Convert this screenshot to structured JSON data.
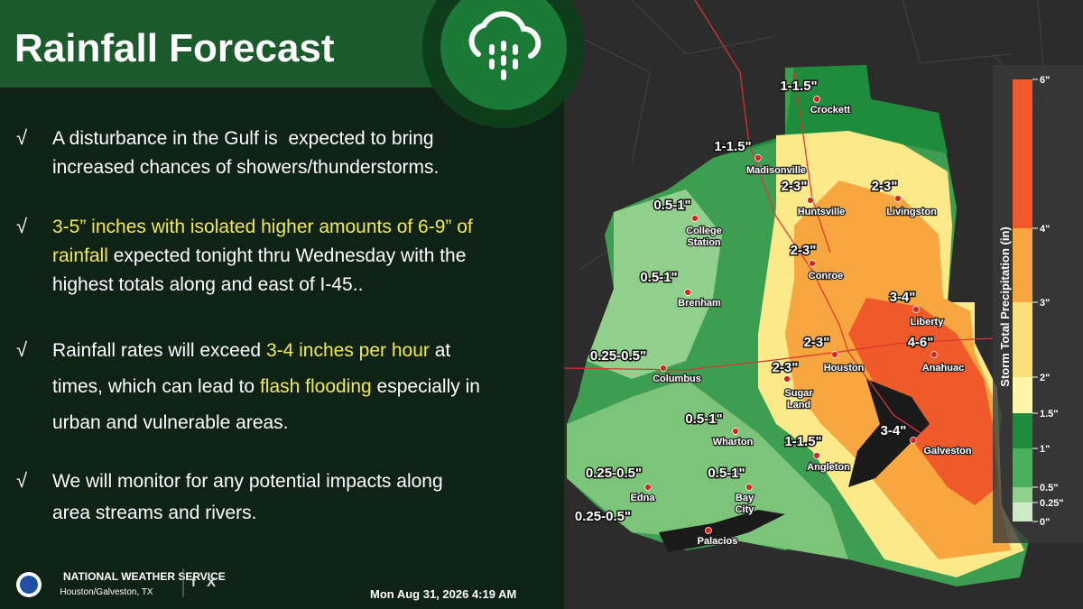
{
  "header": {
    "title": "Rainfall Forecast"
  },
  "bullets": [
    {
      "marker": "√",
      "lines": [
        [
          {
            "text": "A disturbance in the Gulf is  expected to bring",
            "highlight": false
          }
        ],
        [
          {
            "text": "increased chances of showers/thunderstorms.",
            "highlight": false
          }
        ]
      ]
    },
    {
      "marker": "√",
      "lines": [
        [
          {
            "text": "3-5” inches with isolated higher amounts of 6-9” of",
            "highlight": true
          }
        ],
        [
          {
            "text": "rainfall",
            "highlight": true
          },
          {
            "text": " expected tonight thru Wednesday with the",
            "highlight": false
          }
        ],
        [
          {
            "text": "highest totals along and east of I-45..",
            "highlight": false
          }
        ]
      ]
    },
    {
      "marker": "√",
      "lines": [
        [
          {
            "text": "Rainfall rates will exceed ",
            "highlight": false
          },
          {
            "text": "3-4 inches per hour",
            "highlight": true
          },
          {
            "text": " at",
            "highlight": false
          }
        ],
        [
          {
            "text": "times, which can lead to ",
            "highlight": false
          },
          {
            "text": "flash flooding",
            "highlight": true
          },
          {
            "text": " especially in",
            "highlight": false
          }
        ],
        [
          {
            "text": "urban and vulnerable areas.",
            "highlight": false
          }
        ]
      ]
    },
    {
      "marker": "√",
      "lines": [
        [
          {
            "text": "We will monitor for any potential impacts along",
            "highlight": false
          }
        ],
        [
          {
            "text": "area streams and rivers.",
            "highlight": false
          }
        ]
      ]
    }
  ],
  "highlight_color": "#f5e94a",
  "footer": {
    "agency": "NATIONAL WEATHER SERVICE",
    "office": "Houston/Galveston, TX",
    "social": [
      "f",
      "X"
    ],
    "timestamp": "Mon Aug 31, 2026 4:19 AM"
  },
  "map": {
    "labels": [
      {
        "amount": "1-1.5\"",
        "city": [
          "Crockett"
        ]
      },
      {
        "amount": "1-1.5\"",
        "city": [
          "Madisonville"
        ]
      },
      {
        "amount": "2-3\"",
        "city": [
          "Huntsville"
        ]
      },
      {
        "amount": "2-3\"",
        "city": [
          "Livingston"
        ]
      },
      {
        "amount": "0.5-1\"",
        "city": [
          "College",
          "Station"
        ]
      },
      {
        "amount": "2-3\"",
        "city": [
          "Conroe"
        ]
      },
      {
        "amount": "0.5-1\"",
        "city": [
          "Brenham"
        ]
      },
      {
        "amount": "3-4\"",
        "city": [
          "Liberty"
        ]
      },
      {
        "amount": "0.25-0.5\"",
        "city": [
          "Columbus"
        ]
      },
      {
        "amount": "2-3\"",
        "city": [
          "Houston"
        ]
      },
      {
        "amount": "4-6\"",
        "city": [
          "Anahuac"
        ]
      },
      {
        "amount": "2-3\"",
        "city": [
          "Sugar",
          "Land"
        ]
      },
      {
        "amount": "3-4\"",
        "city": [
          "Galveston"
        ]
      },
      {
        "amount": "0.5-1\"",
        "city": [
          "Wharton"
        ]
      },
      {
        "amount": "1-1.5\"",
        "city": [
          "Angleton"
        ]
      },
      {
        "amount": "0.25-0.5\"",
        "city": [
          "Edna"
        ]
      },
      {
        "amount": "0.5-1\"",
        "city": [
          "Bay",
          "City"
        ]
      },
      {
        "amount": "0.25-0.5\"",
        "city": [
          "Palacios"
        ]
      }
    ],
    "legend": {
      "title": "Storm Total Precipitation (in)",
      "ticks": [
        "6\"",
        "4\"",
        "3\"",
        "2\"",
        "1.5\"",
        "1\"",
        "0.5\"",
        "0.25\"",
        "0\""
      ],
      "colors": [
        "#f05a2a",
        "#f7a640",
        "#fbe07a",
        "#fff6a8",
        "#1f8b3d",
        "#4caf5c",
        "#90d08c",
        "#cdeac6"
      ]
    }
  }
}
